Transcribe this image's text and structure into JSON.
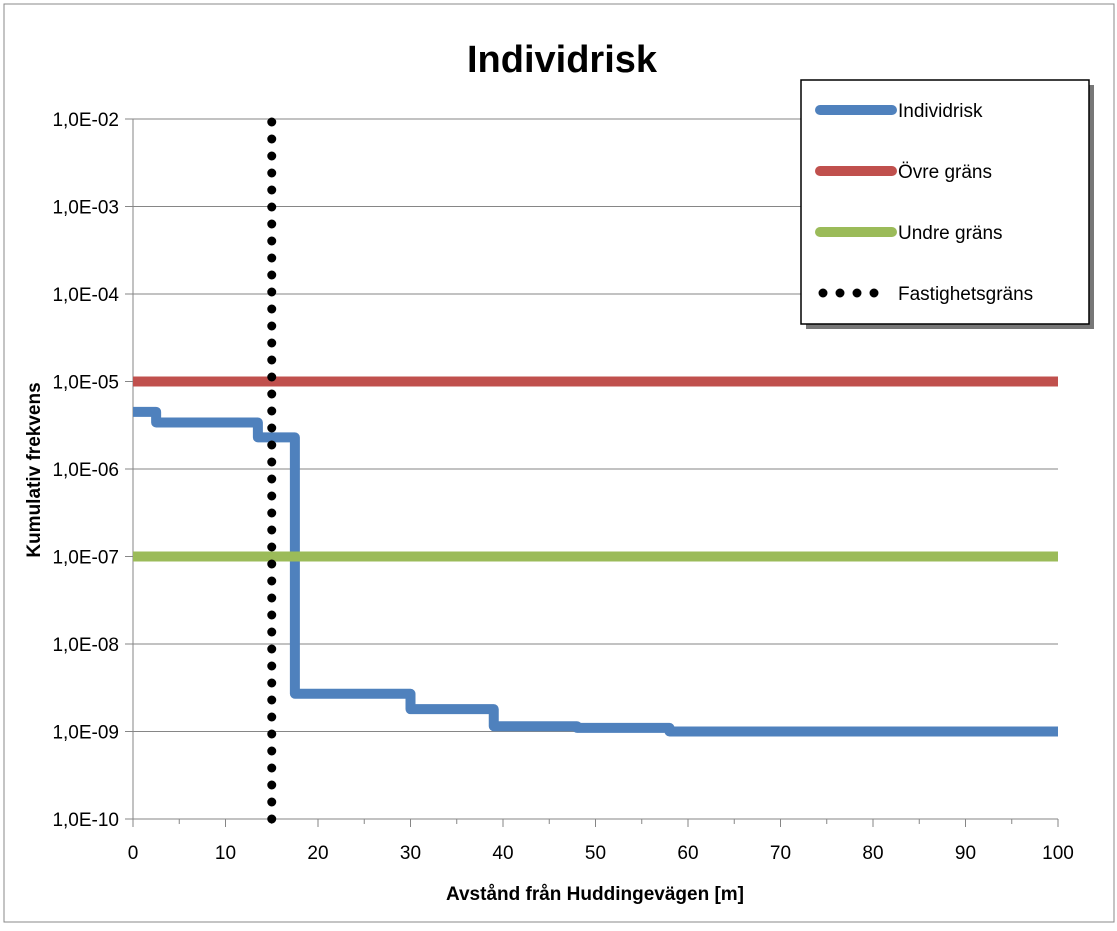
{
  "chart_data": {
    "type": "line",
    "title": "Individrisk",
    "xlabel": "Avstånd från Huddingevägen [m]",
    "ylabel": "Kumulativ frekvens",
    "xlim": [
      0,
      100
    ],
    "ylim": [
      1e-10,
      0.01
    ],
    "yscale": "log",
    "grid": "horizontal major gridlines",
    "legend": "top-right",
    "x_ticks": [
      "0",
      "10",
      "20",
      "30",
      "40",
      "50",
      "60",
      "70",
      "80",
      "90",
      "100"
    ],
    "y_ticks": [
      "1,0E-10",
      "1,0E-09",
      "1,0E-08",
      "1,0E-07",
      "1,0E-06",
      "1,0E-05",
      "1,0E-04",
      "1,0E-03",
      "1,0E-02"
    ],
    "series": [
      {
        "name": "Individrisk",
        "color": "#4f81bd",
        "style": "step",
        "points": [
          [
            0,
            4.5e-06
          ],
          [
            2.5,
            4.5e-06
          ],
          [
            2.5,
            3.4e-06
          ],
          [
            13.5,
            3.4e-06
          ],
          [
            13.5,
            2.3e-06
          ],
          [
            17.5,
            2.3e-06
          ],
          [
            17.5,
            2.7e-09
          ],
          [
            30,
            2.7e-09
          ],
          [
            30,
            1.8e-09
          ],
          [
            39,
            1.8e-09
          ],
          [
            39,
            1.15e-09
          ],
          [
            48,
            1.15e-09
          ],
          [
            48,
            1.1e-09
          ],
          [
            58,
            1.1e-09
          ],
          [
            58,
            1e-09
          ],
          [
            100,
            1e-09
          ]
        ]
      },
      {
        "name": "Övre gräns",
        "color": "#c0504d",
        "style": "line",
        "points": [
          [
            0,
            1e-05
          ],
          [
            100,
            1e-05
          ]
        ]
      },
      {
        "name": "Undre gräns",
        "color": "#9bbb59",
        "style": "line",
        "points": [
          [
            0,
            1e-07
          ],
          [
            100,
            1e-07
          ]
        ]
      },
      {
        "name": "Fastighetsgräns",
        "color": "#000000",
        "style": "dotted",
        "points": [
          [
            15,
            1e-10
          ],
          [
            15,
            0.01
          ]
        ]
      }
    ]
  }
}
